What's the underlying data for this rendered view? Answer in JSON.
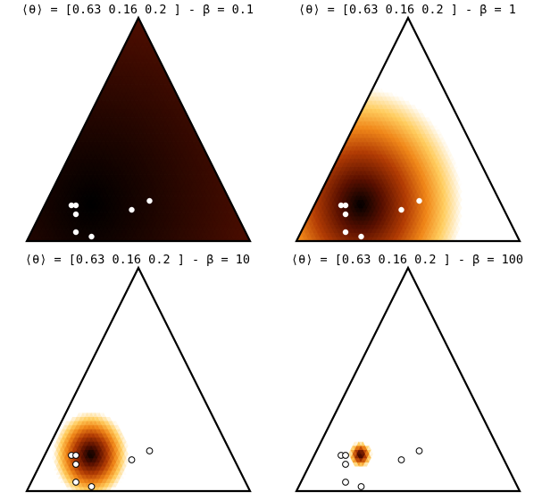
{
  "chart_data": [
    {
      "type": "heatmap",
      "subtype": "ternary-density",
      "title": "⟨θ⟩ = [0.63 0.16 0.2 ] - β = 0.1",
      "mean_theta": [
        0.63,
        0.16,
        0.2
      ],
      "beta": 0.1,
      "colormap": "afmhot",
      "points": [
        [
          0.72,
          0.16,
          0.12
        ],
        [
          0.7,
          0.16,
          0.14
        ],
        [
          0.72,
          0.12,
          0.16
        ],
        [
          0.76,
          0.04,
          0.2
        ],
        [
          0.7,
          0.02,
          0.28
        ],
        [
          0.46,
          0.14,
          0.4
        ],
        [
          0.36,
          0.18,
          0.46
        ]
      ]
    },
    {
      "type": "heatmap",
      "subtype": "ternary-density",
      "title": "⟨θ⟩ = [0.63 0.16 0.2 ] - β = 1",
      "mean_theta": [
        0.63,
        0.16,
        0.2
      ],
      "beta": 1,
      "colormap": "afmhot",
      "points": [
        [
          0.72,
          0.16,
          0.12
        ],
        [
          0.7,
          0.16,
          0.14
        ],
        [
          0.72,
          0.12,
          0.16
        ],
        [
          0.76,
          0.04,
          0.2
        ],
        [
          0.7,
          0.02,
          0.28
        ],
        [
          0.46,
          0.14,
          0.4
        ],
        [
          0.36,
          0.18,
          0.46
        ]
      ]
    },
    {
      "type": "heatmap",
      "subtype": "ternary-density",
      "title": "⟨θ⟩ = [0.63 0.16 0.2 ] - β = 10",
      "mean_theta": [
        0.63,
        0.16,
        0.2
      ],
      "beta": 10,
      "colormap": "afmhot",
      "points": [
        [
          0.72,
          0.16,
          0.12
        ],
        [
          0.7,
          0.16,
          0.14
        ],
        [
          0.72,
          0.12,
          0.16
        ],
        [
          0.76,
          0.04,
          0.2
        ],
        [
          0.7,
          0.02,
          0.28
        ],
        [
          0.46,
          0.14,
          0.4
        ],
        [
          0.36,
          0.18,
          0.46
        ]
      ]
    },
    {
      "type": "heatmap",
      "subtype": "ternary-density",
      "title": "⟨θ⟩ = [0.63 0.16 0.2 ] - β = 100",
      "mean_theta": [
        0.63,
        0.16,
        0.2
      ],
      "beta": 100,
      "colormap": "afmhot",
      "points": [
        [
          0.72,
          0.16,
          0.12
        ],
        [
          0.7,
          0.16,
          0.14
        ],
        [
          0.72,
          0.12,
          0.16
        ],
        [
          0.76,
          0.04,
          0.2
        ],
        [
          0.7,
          0.02,
          0.28
        ],
        [
          0.46,
          0.14,
          0.4
        ],
        [
          0.36,
          0.18,
          0.46
        ]
      ]
    }
  ]
}
